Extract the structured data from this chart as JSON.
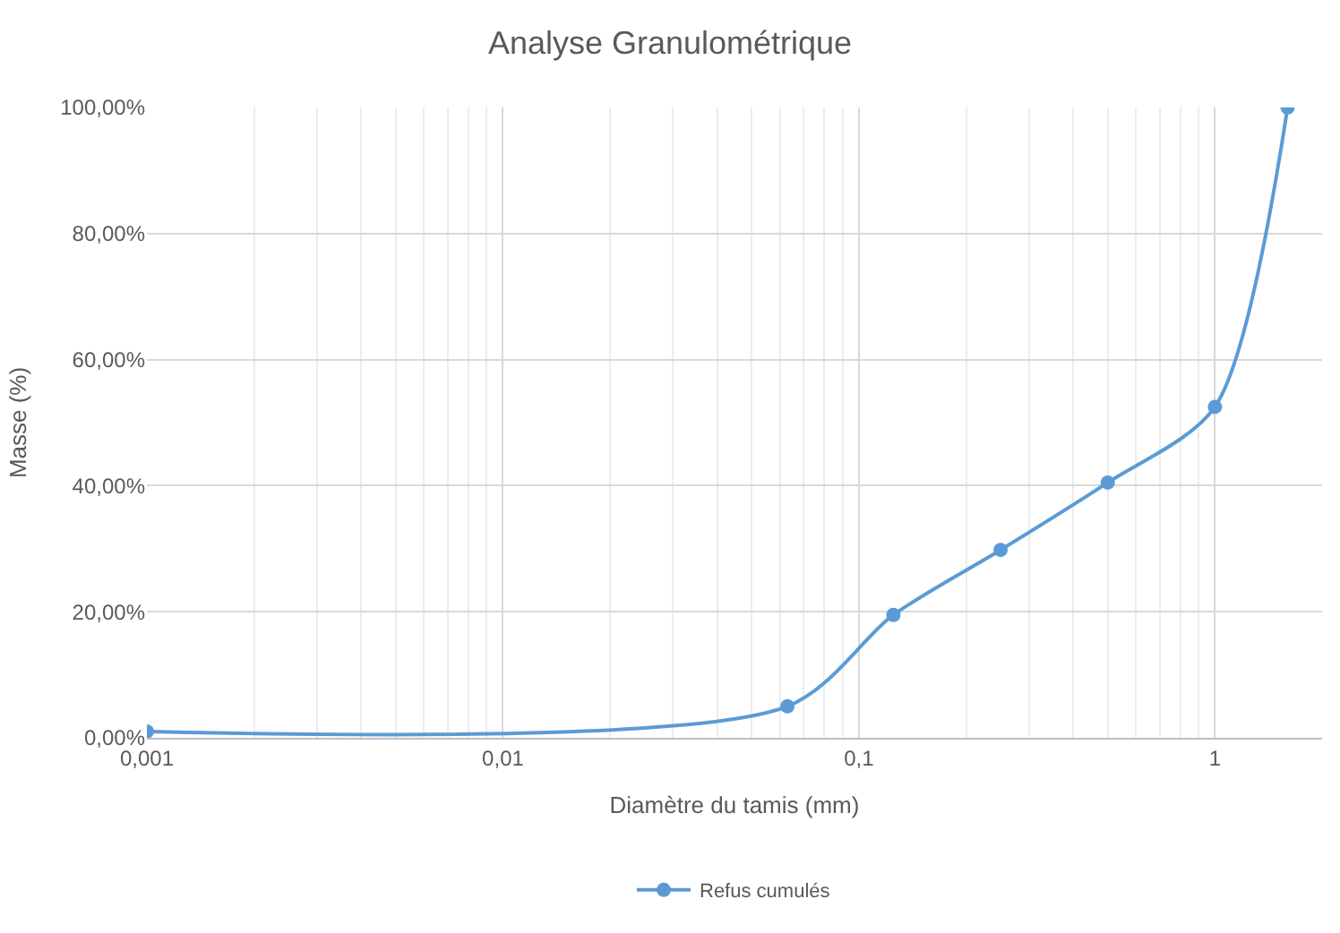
{
  "chart_data": {
    "type": "line",
    "title": "Analyse Granulométrique",
    "xlabel": "Diamètre du tamis (mm)",
    "ylabel": "Masse (%)",
    "x": [
      0.001,
      0.063,
      0.125,
      0.25,
      0.5,
      1,
      1.6
    ],
    "series": [
      {
        "name": "Refus cumulés",
        "color": "#5b9bd5",
        "values": [
          1,
          5,
          19.5,
          29.8,
          40.5,
          52.5,
          100
        ]
      }
    ],
    "log": "x",
    "xlim": [
      0.001,
      2
    ],
    "ylim": [
      0,
      100
    ],
    "xticks": [
      {
        "value": 0.001,
        "label": "0,001"
      },
      {
        "value": 0.01,
        "label": "0,01"
      },
      {
        "value": 0.1,
        "label": "0,1"
      },
      {
        "value": 1,
        "label": "1"
      }
    ],
    "yticks": [
      {
        "value": 0,
        "label": "0,00%"
      },
      {
        "value": 20,
        "label": "20,00%"
      },
      {
        "value": 40,
        "label": "40,00%"
      },
      {
        "value": 60,
        "label": "60,00%"
      },
      {
        "value": 80,
        "label": "80,00%"
      },
      {
        "value": 100,
        "label": "100,00%"
      }
    ],
    "grid": true,
    "legend": "bottom",
    "marker": "circle",
    "line_style": "solid"
  }
}
